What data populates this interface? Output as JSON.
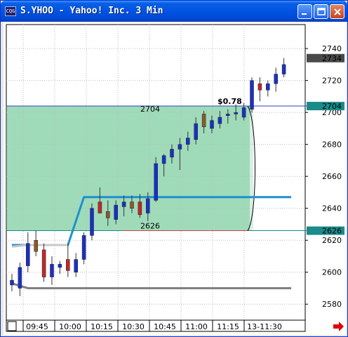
{
  "window": {
    "title": "S.YHOO - Yahoo! Inc. 3 Min",
    "icon": "chart-app-icon",
    "controls": [
      "minimize-icon",
      "maximize-icon",
      "close-icon"
    ]
  },
  "chart_data": {
    "type": "candlestick",
    "symbol": "S.YHOO",
    "interval": "3 Min",
    "ylim": [
      2570,
      2755
    ],
    "y_ticks": [
      2580,
      2600,
      2620,
      2640,
      2660,
      2680,
      2700,
      2720,
      2740
    ],
    "x_ticks": [
      "09:45",
      "10:00",
      "10:15",
      "10:30",
      "10:45",
      "11:00",
      "11:15",
      "13-11:30"
    ],
    "price_badges": [
      {
        "value": "2734",
        "style": "dark"
      },
      {
        "value": "2704",
        "style": "teal"
      },
      {
        "value": "2626",
        "style": "teal"
      }
    ],
    "zone": {
      "high": 2704,
      "low": 2626,
      "high_label": "2704",
      "low_label": "2626",
      "color": "#9ad9b5",
      "range_label": "$0.78"
    },
    "lines": [
      {
        "name": "trail-upper",
        "color": "#1e90d0",
        "points": [
          [
            0,
            2617
          ],
          [
            7,
            2617
          ],
          [
            9,
            2647
          ],
          [
            22,
            2647
          ]
        ]
      },
      {
        "name": "trail-light",
        "color": "#c8c8c8",
        "points": [
          [
            0,
            2616
          ],
          [
            2,
            2617
          ],
          [
            7,
            2617
          ]
        ]
      },
      {
        "name": "trail-lower",
        "color": "#808080",
        "points": [
          [
            0,
            2593
          ],
          [
            2,
            2590
          ],
          [
            22,
            2590
          ]
        ]
      }
    ],
    "candles": [
      {
        "o": 2592,
        "h": 2599,
        "l": 2588,
        "c": 2595
      },
      {
        "o": 2590,
        "h": 2606,
        "l": 2585,
        "c": 2603
      },
      {
        "o": 2604,
        "h": 2625,
        "l": 2600,
        "c": 2618
      },
      {
        "o": 2620,
        "h": 2626,
        "l": 2610,
        "c": 2613
      },
      {
        "o": 2614,
        "h": 2618,
        "l": 2594,
        "c": 2597
      },
      {
        "o": 2597,
        "h": 2610,
        "l": 2592,
        "c": 2605
      },
      {
        "o": 2603,
        "h": 2607,
        "l": 2599,
        "c": 2605
      },
      {
        "o": 2608,
        "h": 2618,
        "l": 2597,
        "c": 2601
      },
      {
        "o": 2600,
        "h": 2612,
        "l": 2597,
        "c": 2608
      },
      {
        "o": 2608,
        "h": 2625,
        "l": 2605,
        "c": 2623
      },
      {
        "o": 2623,
        "h": 2643,
        "l": 2620,
        "c": 2640
      },
      {
        "o": 2644,
        "h": 2653,
        "l": 2638,
        "c": 2637
      },
      {
        "o": 2638,
        "h": 2645,
        "l": 2629,
        "c": 2634
      },
      {
        "o": 2633,
        "h": 2645,
        "l": 2630,
        "c": 2642
      },
      {
        "o": 2641,
        "h": 2648,
        "l": 2635,
        "c": 2644
      },
      {
        "o": 2644,
        "h": 2648,
        "l": 2637,
        "c": 2640
      },
      {
        "o": 2644,
        "h": 2649,
        "l": 2634,
        "c": 2636
      },
      {
        "o": 2637,
        "h": 2650,
        "l": 2632,
        "c": 2646
      },
      {
        "o": 2645,
        "h": 2672,
        "l": 2644,
        "c": 2668
      },
      {
        "o": 2668,
        "h": 2674,
        "l": 2660,
        "c": 2673
      },
      {
        "o": 2672,
        "h": 2680,
        "l": 2668,
        "c": 2677
      },
      {
        "o": 2677,
        "h": 2684,
        "l": 2664,
        "c": 2680
      },
      {
        "o": 2680,
        "h": 2688,
        "l": 2676,
        "c": 2684
      },
      {
        "o": 2683,
        "h": 2697,
        "l": 2680,
        "c": 2693
      },
      {
        "o": 2699,
        "h": 2701,
        "l": 2687,
        "c": 2691
      },
      {
        "o": 2690,
        "h": 2698,
        "l": 2687,
        "c": 2695
      },
      {
        "o": 2693,
        "h": 2701,
        "l": 2690,
        "c": 2697
      },
      {
        "o": 2698,
        "h": 2702,
        "l": 2693,
        "c": 2699
      },
      {
        "o": 2699,
        "h": 2705,
        "l": 2695,
        "c": 2700
      },
      {
        "o": 2697,
        "h": 2706,
        "l": 2695,
        "c": 2703
      },
      {
        "o": 2702,
        "h": 2722,
        "l": 2700,
        "c": 2720
      },
      {
        "o": 2718,
        "h": 2722,
        "l": 2707,
        "c": 2714
      },
      {
        "o": 2714,
        "h": 2720,
        "l": 2710,
        "c": 2718
      },
      {
        "o": 2718,
        "h": 2728,
        "l": 2713,
        "c": 2724
      },
      {
        "o": 2724,
        "h": 2734,
        "l": 2722,
        "c": 2730
      }
    ]
  }
}
